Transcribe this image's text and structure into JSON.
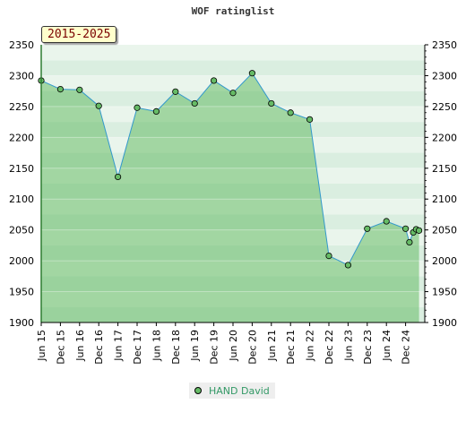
{
  "chart_data": {
    "type": "line",
    "title": "WOF ratinglist",
    "period_label": "2015-2025",
    "x_labels": [
      "Jun 15",
      "Dec 15",
      "Jun 16",
      "Dec 16",
      "Jun 17",
      "Dec 17",
      "Jun 18",
      "Dec 18",
      "Jun 19",
      "Dec 19",
      "Jun 20",
      "Dec 20",
      "Jun 21",
      "Dec 21",
      "Jun 22",
      "Dec 22",
      "Jun 23",
      "Dec 23",
      "Jun 24",
      "Dec 24"
    ],
    "y_ticks": [
      1900,
      1950,
      2000,
      2050,
      2100,
      2150,
      2200,
      2250,
      2300,
      2350
    ],
    "ylim": [
      1900,
      2350
    ],
    "grid": true,
    "legend_position": "bottom-center",
    "series": [
      {
        "name": "HAND David",
        "color": "#3399cc",
        "fill_color": "#66bb66",
        "marker_color": "#66bb66",
        "x": [
          0,
          1,
          2,
          3,
          4,
          5,
          6,
          7,
          8,
          9,
          10,
          11,
          12,
          13,
          14,
          15,
          16,
          17,
          18,
          19,
          19.2,
          19.4,
          19.55,
          19.7
        ],
        "values": [
          2292,
          2278,
          2277,
          2251,
          2136,
          2248,
          2242,
          2274,
          2255,
          2292,
          2272,
          2304,
          2255,
          2240,
          2229,
          2008,
          1993,
          2052,
          2064,
          2052,
          2030,
          2046,
          2051,
          2049
        ]
      }
    ]
  }
}
